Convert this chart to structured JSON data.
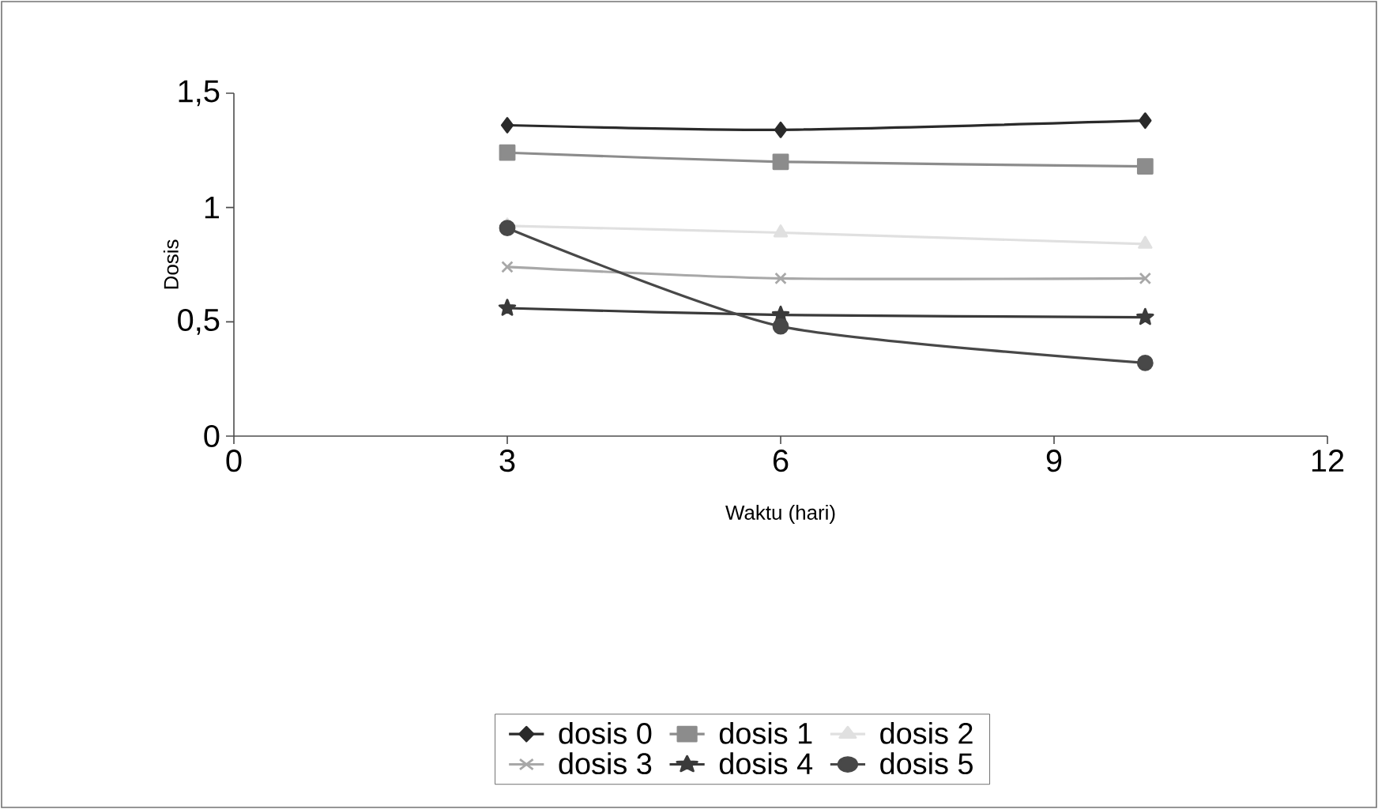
{
  "chart_data": {
    "type": "line",
    "xlabel": "Waktu (hari)",
    "ylabel": "Dosis",
    "x": [
      3,
      6,
      10
    ],
    "xlim": [
      0,
      12
    ],
    "xticks": [
      0,
      3,
      6,
      9,
      12
    ],
    "ylim": [
      0,
      1.5
    ],
    "yticks": [
      0,
      {
        "value": 0.5,
        "label": "0,5"
      },
      1,
      {
        "value": 1.5,
        "label": "1,5"
      }
    ],
    "grid": false,
    "legend": "bottom",
    "series": [
      {
        "name": "dosis 0",
        "color": "#2a2a2a",
        "marker": "diamond",
        "values": [
          1.36,
          1.34,
          1.38
        ]
      },
      {
        "name": "dosis 1",
        "color": "#8c8c8c",
        "marker": "square",
        "values": [
          1.24,
          1.2,
          1.18
        ]
      },
      {
        "name": "dosis 2",
        "color": "#e0e0e0",
        "marker": "triangle",
        "values": [
          0.92,
          0.89,
          0.84
        ]
      },
      {
        "name": "dosis 3",
        "color": "#a8a8a8",
        "marker": "cross",
        "values": [
          0.74,
          0.69,
          0.69
        ]
      },
      {
        "name": "dosis 4",
        "color": "#3a3a3a",
        "marker": "star",
        "values": [
          0.56,
          0.53,
          0.52
        ]
      },
      {
        "name": "dosis 5",
        "color": "#484848",
        "marker": "circle",
        "values": [
          0.91,
          0.48,
          0.32
        ]
      }
    ]
  }
}
